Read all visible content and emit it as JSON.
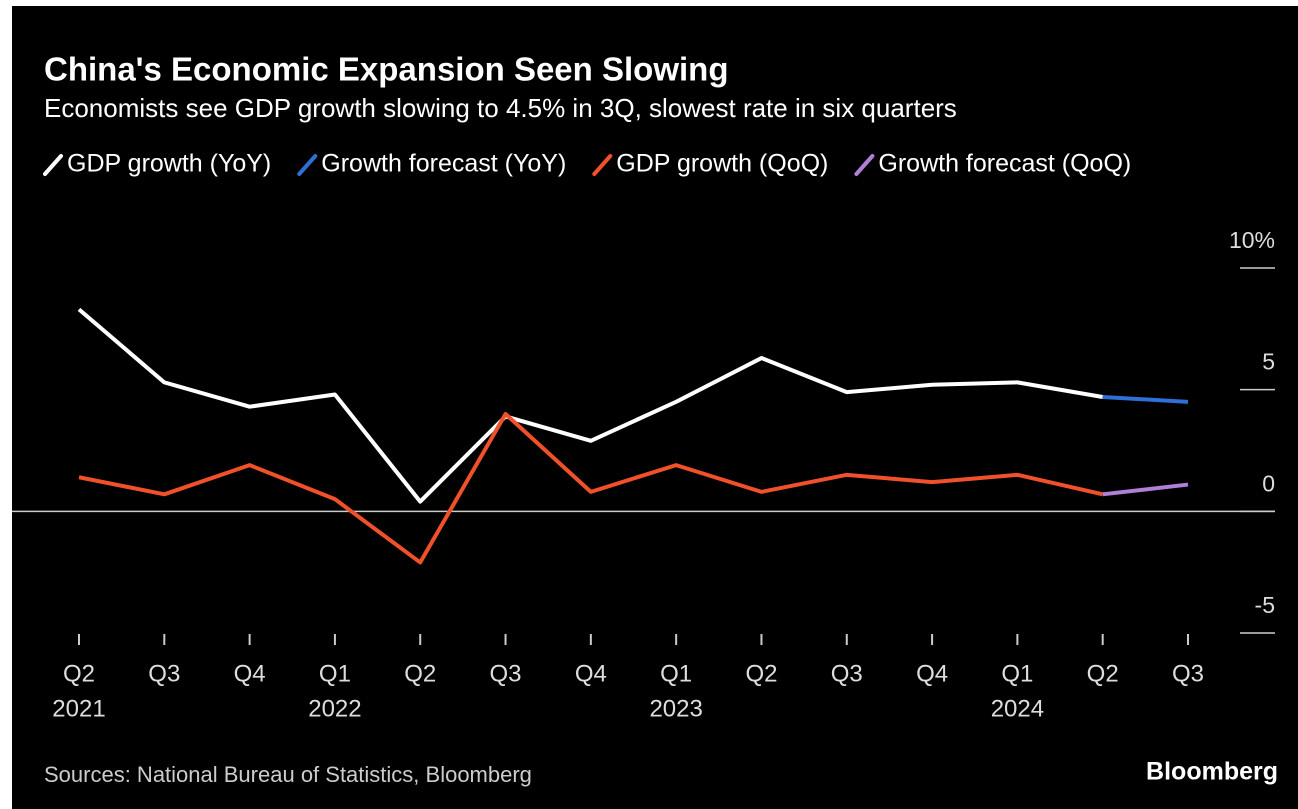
{
  "chart_data": {
    "type": "line",
    "title": "China's Economic Expansion Seen Slowing",
    "subtitle": "Economists see GDP growth slowing to 4.5% in 3Q, slowest rate in six quarters",
    "categories": [
      "Q2",
      "Q3",
      "Q4",
      "Q1",
      "Q2",
      "Q3",
      "Q4",
      "Q1",
      "Q2",
      "Q3",
      "Q4",
      "Q1",
      "Q2",
      "Q3"
    ],
    "year_labels": [
      "2021",
      null,
      null,
      "2022",
      null,
      null,
      null,
      "2023",
      null,
      null,
      null,
      "2024",
      null,
      null
    ],
    "series": [
      {
        "name": "GDP growth (YoY)",
        "color": "#ffffff",
        "values": [
          8.3,
          5.3,
          4.3,
          4.8,
          0.4,
          3.9,
          2.9,
          4.5,
          6.3,
          4.9,
          5.2,
          5.3,
          4.7,
          null
        ]
      },
      {
        "name": "Growth forecast (YoY)",
        "color": "#2f6fd6",
        "values": [
          null,
          null,
          null,
          null,
          null,
          null,
          null,
          null,
          null,
          null,
          null,
          null,
          4.7,
          4.5
        ]
      },
      {
        "name": "GDP growth (QoQ)",
        "color": "#f0502a",
        "values": [
          1.4,
          0.7,
          1.9,
          0.5,
          -2.1,
          4.0,
          0.8,
          1.9,
          0.8,
          1.5,
          1.2,
          1.5,
          0.7,
          null
        ]
      },
      {
        "name": "Growth forecast (QoQ)",
        "color": "#b07fd6",
        "values": [
          null,
          null,
          null,
          null,
          null,
          null,
          null,
          null,
          null,
          null,
          null,
          null,
          0.7,
          1.1
        ]
      }
    ],
    "ylim": [
      -5,
      10
    ],
    "yticks": [
      -5,
      0,
      5,
      {
        "value": 10,
        "label": "10%"
      }
    ],
    "source": "Sources: National Bureau of Statistics, Bloomberg",
    "brand": "Bloomberg"
  }
}
